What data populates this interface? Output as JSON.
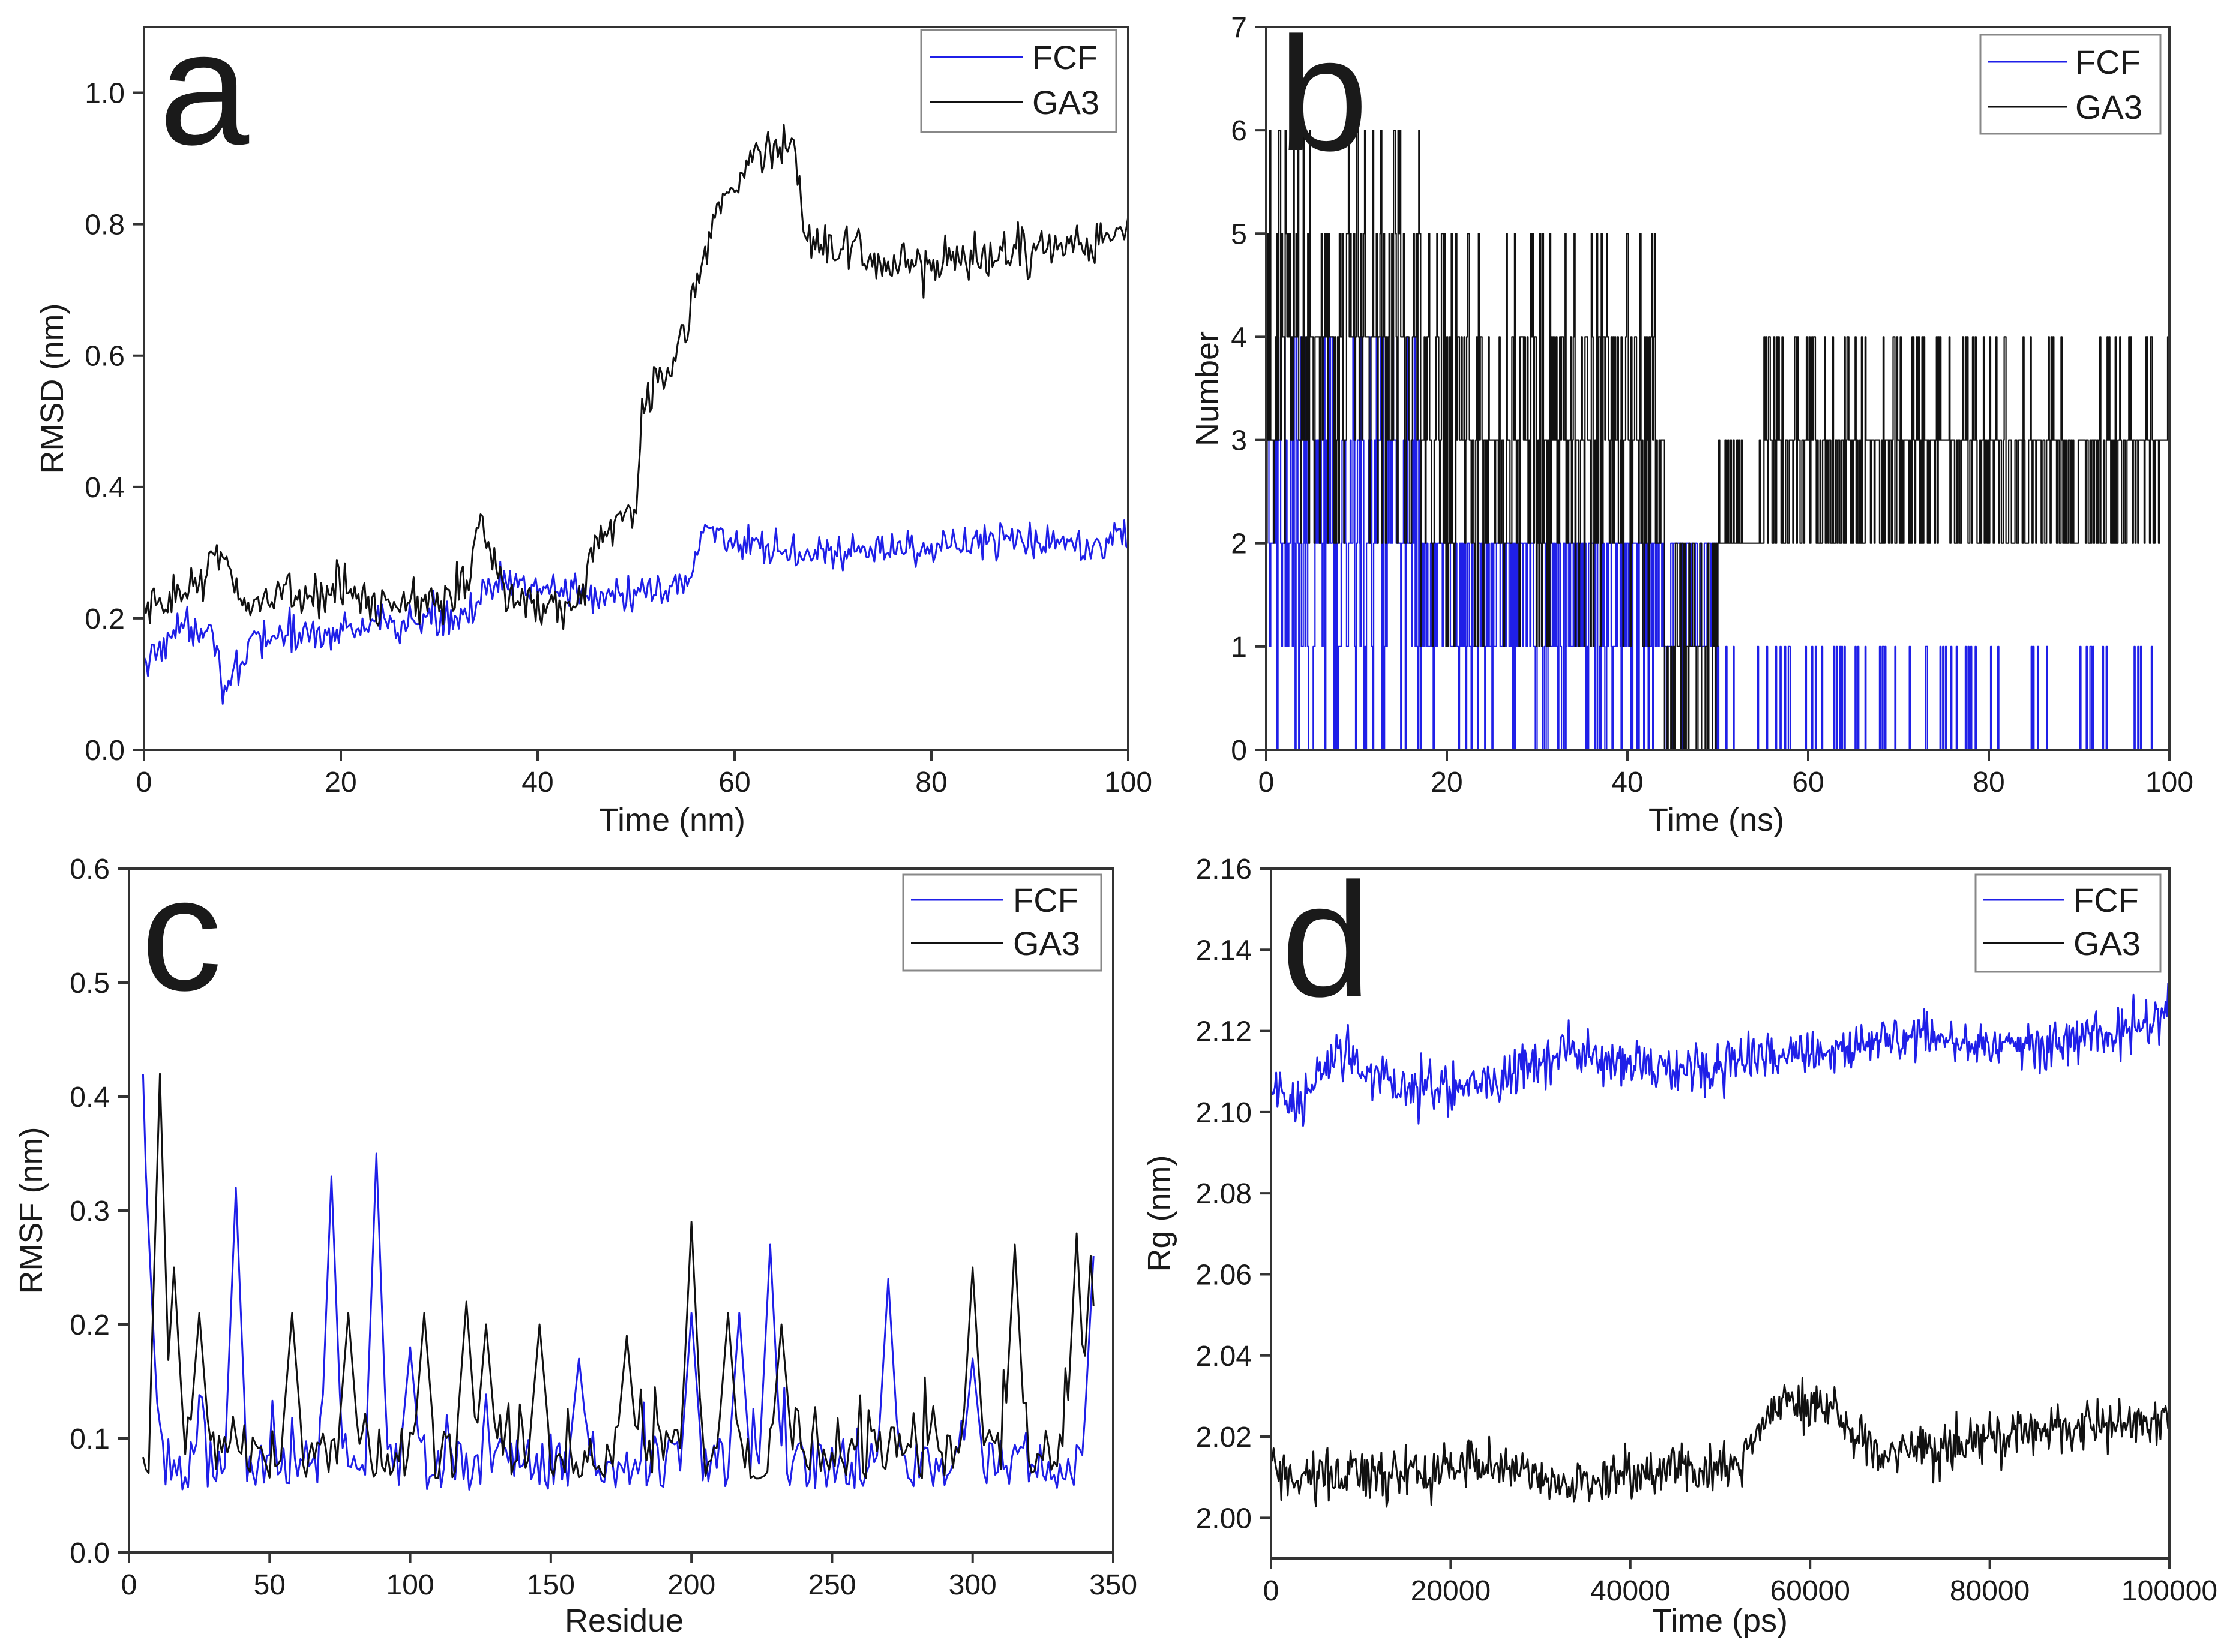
{
  "colors": {
    "FCF": "#1f1fe8",
    "GA3": "#111111",
    "axis": "#333333",
    "legend_border": "#888888"
  },
  "chart_data": [
    {
      "panel": "a",
      "type": "line",
      "title": "",
      "xlabel": "Time (nm)",
      "ylabel": "RMSD (nm)",
      "xlim": [
        0,
        100
      ],
      "ylim": [
        0,
        1.1
      ],
      "xticks": [
        0,
        20,
        40,
        60,
        80,
        100
      ],
      "xtick_labels": [
        "0",
        "20",
        "40",
        "60",
        "80",
        "100"
      ],
      "yticks": [
        0,
        0.2,
        0.4,
        0.6,
        0.8,
        1.0
      ],
      "ytick_labels": [
        "0.0",
        "0.2",
        "0.4",
        "0.6",
        "0.8",
        "1.0"
      ],
      "legend": {
        "placement": "top-right",
        "entries": [
          "FCF",
          "GA3"
        ]
      },
      "series": [
        {
          "name": "FCF",
          "color": "#1f1fe8",
          "noise": 0.03,
          "n": 500,
          "keypoints": [
            [
              0,
              0.12
            ],
            [
              2,
              0.17
            ],
            [
              5,
              0.19
            ],
            [
              7,
              0.19
            ],
            [
              8,
              0.1
            ],
            [
              10,
              0.11
            ],
            [
              11,
              0.17
            ],
            [
              20,
              0.18
            ],
            [
              30,
              0.2
            ],
            [
              34,
              0.22
            ],
            [
              36,
              0.25
            ],
            [
              40,
              0.25
            ],
            [
              50,
              0.23
            ],
            [
              55,
              0.25
            ],
            [
              57,
              0.34
            ],
            [
              59,
              0.33
            ],
            [
              61,
              0.3
            ],
            [
              70,
              0.3
            ],
            [
              80,
              0.31
            ],
            [
              90,
              0.32
            ],
            [
              100,
              0.32
            ]
          ]
        },
        {
          "name": "GA3",
          "color": "#111111",
          "noise": 0.035,
          "n": 500,
          "keypoints": [
            [
              0,
              0.2
            ],
            [
              5,
              0.25
            ],
            [
              7,
              0.3
            ],
            [
              10,
              0.23
            ],
            [
              20,
              0.24
            ],
            [
              30,
              0.22
            ],
            [
              33,
              0.25
            ],
            [
              34,
              0.36
            ],
            [
              36,
              0.28
            ],
            [
              38,
              0.22
            ],
            [
              44,
              0.22
            ],
            [
              46,
              0.32
            ],
            [
              50,
              0.36
            ],
            [
              50.5,
              0.52
            ],
            [
              54,
              0.6
            ],
            [
              56,
              0.7
            ],
            [
              58,
              0.82
            ],
            [
              62,
              0.9
            ],
            [
              66,
              0.93
            ],
            [
              67,
              0.78
            ],
            [
              70,
              0.76
            ],
            [
              80,
              0.73
            ],
            [
              90,
              0.76
            ],
            [
              100,
              0.78
            ]
          ]
        }
      ]
    },
    {
      "panel": "b",
      "type": "line",
      "title": "",
      "xlabel": "Time (ns)",
      "ylabel": "Number",
      "xlim": [
        0,
        100
      ],
      "ylim": [
        0,
        7
      ],
      "xticks": [
        0,
        20,
        40,
        60,
        80,
        100
      ],
      "xtick_labels": [
        "0",
        "20",
        "40",
        "60",
        "80",
        "100"
      ],
      "yticks": [
        0,
        1,
        2,
        3,
        4,
        5,
        6,
        7
      ],
      "ytick_labels": [
        "0",
        "1",
        "2",
        "3",
        "4",
        "5",
        "6",
        "7"
      ],
      "legend": {
        "placement": "top-right",
        "entries": [
          "FCF",
          "GA3"
        ]
      },
      "series": [
        {
          "name": "FCF",
          "color": "#1f1fe8",
          "discrete": true,
          "n": 1000,
          "segments": [
            [
              0,
              17,
              [
                0,
                1,
                1,
                2,
                2,
                2,
                3,
                3,
                4
              ]
            ],
            [
              17,
              50,
              [
                0,
                1,
                1,
                1,
                2,
                2,
                2,
                2
              ]
            ],
            [
              50,
              100,
              [
                0,
                0,
                0,
                0,
                0,
                0,
                0,
                0,
                1
              ]
            ]
          ]
        },
        {
          "name": "GA3",
          "color": "#111111",
          "discrete": true,
          "n": 1000,
          "segments": [
            [
              0,
              17,
              [
                2,
                3,
                3,
                4,
                4,
                4,
                5,
                5,
                6
              ]
            ],
            [
              17,
              44,
              [
                1,
                2,
                2,
                3,
                3,
                3,
                4,
                4,
                5
              ]
            ],
            [
              44,
              50,
              [
                0,
                0,
                1,
                1,
                2
              ]
            ],
            [
              50,
              55,
              [
                2,
                2,
                2,
                2,
                3
              ]
            ],
            [
              55,
              100,
              [
                2,
                2,
                3,
                3,
                3,
                4
              ]
            ]
          ]
        }
      ]
    },
    {
      "panel": "c",
      "type": "line",
      "title": "",
      "xlabel": "Residue",
      "ylabel": "RMSF (nm)",
      "xlim": [
        0,
        350
      ],
      "ylim": [
        0,
        0.6
      ],
      "xticks": [
        0,
        50,
        100,
        150,
        200,
        250,
        300,
        350
      ],
      "xtick_labels": [
        "0",
        "50",
        "100",
        "150",
        "200",
        "250",
        "300",
        "350"
      ],
      "yticks": [
        0,
        0.1,
        0.2,
        0.3,
        0.4,
        0.5,
        0.6
      ],
      "ytick_labels": [
        "0.0",
        "0.1",
        "0.2",
        "0.3",
        "0.4",
        "0.5",
        "0.6"
      ],
      "legend": {
        "placement": "top-right",
        "entries": [
          "FCF",
          "GA3"
        ]
      },
      "series": [
        {
          "name": "FCF",
          "color": "#1f1fe8",
          "residues": [
            5,
            343
          ],
          "base": 0.075,
          "seed": 7,
          "peaks": [
            [
              5,
              0.42
            ],
            [
              7,
              0.28
            ],
            [
              9,
              0.15
            ],
            [
              38,
              0.32
            ],
            [
              72,
              0.33
            ],
            [
              88,
              0.35
            ],
            [
              100,
              0.18
            ],
            [
              160,
              0.17
            ],
            [
              200,
              0.21
            ],
            [
              217,
              0.21
            ],
            [
              228,
              0.27
            ],
            [
              270,
              0.24
            ],
            [
              300,
              0.17
            ],
            [
              343,
              0.26
            ]
          ]
        },
        {
          "name": "GA3",
          "color": "#111111",
          "residues": [
            5,
            343
          ],
          "base": 0.085,
          "seed": 13,
          "peaks": [
            [
              11,
              0.42
            ],
            [
              16,
              0.25
            ],
            [
              25,
              0.21
            ],
            [
              58,
              0.21
            ],
            [
              78,
              0.21
            ],
            [
              105,
              0.21
            ],
            [
              120,
              0.22
            ],
            [
              127,
              0.2
            ],
            [
              146,
              0.2
            ],
            [
              177,
              0.19
            ],
            [
              200,
              0.29
            ],
            [
              213,
              0.21
            ],
            [
              232,
              0.2
            ],
            [
              300,
              0.25
            ],
            [
              315,
              0.27
            ],
            [
              337,
              0.28
            ],
            [
              342,
              0.26
            ]
          ]
        }
      ]
    },
    {
      "panel": "d",
      "type": "line",
      "title": "",
      "xlabel": "Time (ps)",
      "ylabel": "Rg (nm)",
      "xlim": [
        0,
        100000
      ],
      "ylim": [
        1.99,
        2.16
      ],
      "xticks": [
        0,
        20000,
        40000,
        60000,
        80000,
        100000
      ],
      "xtick_labels": [
        "0",
        "20000",
        "40000",
        "60000",
        "80000",
        "100000"
      ],
      "yticks": [
        2.0,
        2.02,
        2.04,
        2.06,
        2.08,
        2.1,
        2.12,
        2.14,
        2.16
      ],
      "ytick_labels": [
        "2.00",
        "2.02",
        "2.04",
        "2.06",
        "2.08",
        "2.10",
        "2.12",
        "2.14",
        "2.16"
      ],
      "legend": {
        "placement": "top-right",
        "entries": [
          "FCF",
          "GA3"
        ]
      },
      "series": [
        {
          "name": "FCF",
          "color": "#1f1fe8",
          "noise": 0.006,
          "n": 700,
          "keypoints": [
            [
              0,
              2.105
            ],
            [
              3000,
              2.1
            ],
            [
              7000,
              2.115
            ],
            [
              15000,
              2.105
            ],
            [
              25000,
              2.107
            ],
            [
              33000,
              2.115
            ],
            [
              45000,
              2.11
            ],
            [
              55000,
              2.113
            ],
            [
              70000,
              2.118
            ],
            [
              85000,
              2.117
            ],
            [
              100000,
              2.123
            ]
          ]
        },
        {
          "name": "GA3",
          "color": "#111111",
          "noise": 0.006,
          "n": 700,
          "keypoints": [
            [
              0,
              2.01
            ],
            [
              10000,
              2.011
            ],
            [
              25000,
              2.013
            ],
            [
              33000,
              2.008
            ],
            [
              45000,
              2.012
            ],
            [
              52000,
              2.013
            ],
            [
              55000,
              2.025
            ],
            [
              58000,
              2.03
            ],
            [
              63000,
              2.025
            ],
            [
              68000,
              2.015
            ],
            [
              80000,
              2.02
            ],
            [
              100000,
              2.024
            ]
          ]
        }
      ]
    }
  ]
}
